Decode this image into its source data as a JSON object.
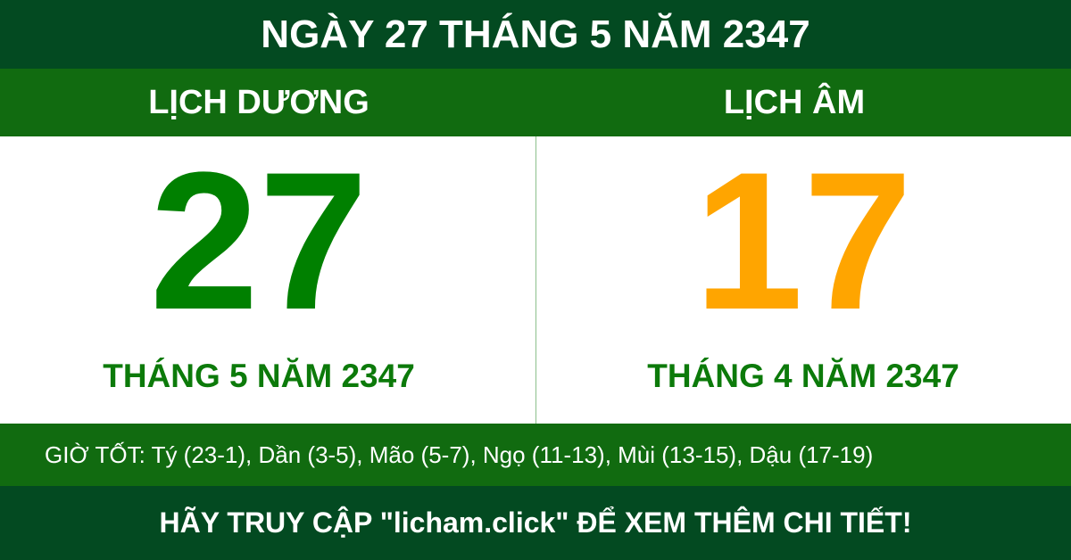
{
  "title": "NGÀY 27 THÁNG 5 NĂM 2347",
  "solar": {
    "label": "LỊCH DƯƠNG",
    "day": "27",
    "month_year": "THÁNG 5 NĂM 2347",
    "color": "#008000"
  },
  "lunar": {
    "label": "LỊCH ÂM",
    "day": "17",
    "month_year": "THÁNG 4 NĂM 2347",
    "color": "#ffa500"
  },
  "good_hours": "GIỜ TỐT: Tý (23-1), Dần (3-5), Mão (5-7), Ngọ (11-13), Mùi (13-15), Dậu (17-19)",
  "footer": "HÃY TRUY CẬP \"licham.click\" ĐỂ XEM THÊM CHI TIẾT!"
}
